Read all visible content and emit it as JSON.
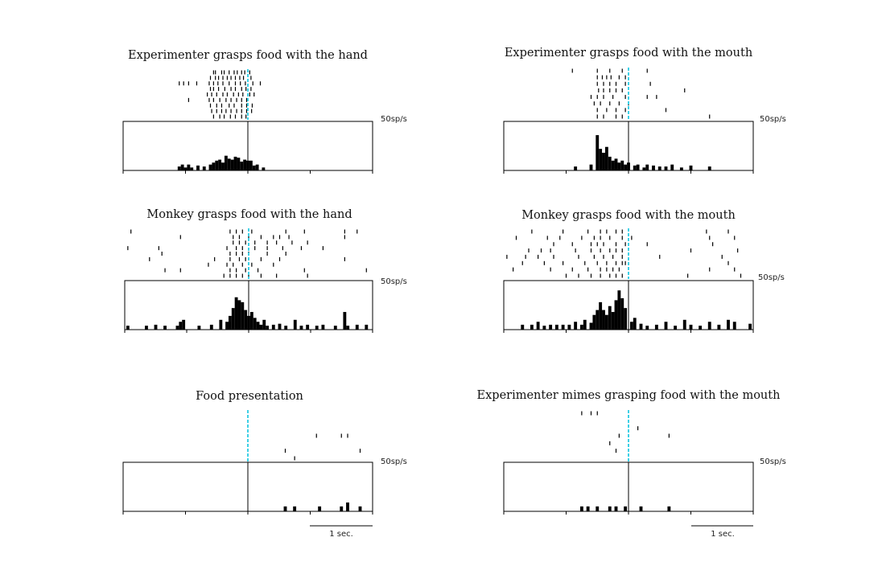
{
  "figure": {
    "scale_unit": "50sp/s",
    "timebar_label": "1 sec.",
    "colors": {
      "event_line": "#3fd0e6",
      "ink": "#000000"
    }
  },
  "chart_data": [
    {
      "type": "bar",
      "title": "Experimenter grasps food with the hand",
      "scale_label": "50sp/s",
      "x_range": [
        -2,
        2
      ],
      "x_unit": "s",
      "event_time": 0,
      "ylim": [
        0,
        50
      ],
      "raster": [
        [
          -0.55,
          -0.52,
          -0.42,
          -0.38,
          -0.3,
          -0.22,
          -0.17,
          -0.1,
          -0.05,
          0.03
        ],
        [
          -0.6,
          -0.52,
          -0.47,
          -0.4,
          -0.33,
          -0.27,
          -0.2,
          -0.13,
          -0.07,
          0.05
        ],
        [
          -1.1,
          -1.03,
          -0.95,
          -0.82,
          -0.62,
          -0.55,
          -0.48,
          -0.4,
          -0.3,
          -0.2,
          -0.12,
          -0.04,
          0.08,
          0.2
        ],
        [
          -0.6,
          -0.55,
          -0.47,
          -0.37,
          -0.27,
          -0.2,
          -0.1,
          -0.03,
          0.05
        ],
        [
          -0.65,
          -0.58,
          -0.5,
          -0.4,
          -0.33,
          -0.23,
          -0.15,
          -0.08,
          0.03,
          0.1
        ],
        [
          -0.95,
          -0.62,
          -0.55,
          -0.45,
          -0.35,
          -0.27,
          -0.18,
          -0.1,
          -0.02
        ],
        [
          -0.6,
          -0.5,
          -0.42,
          -0.3,
          -0.22,
          -0.1,
          -0.02,
          0.07
        ],
        [
          -0.58,
          -0.5,
          -0.42,
          -0.35,
          -0.27,
          -0.18,
          -0.1,
          -0.02,
          0.06
        ],
        [
          -0.55,
          -0.45,
          -0.38,
          -0.28,
          -0.2,
          -0.1,
          -0.03
        ]
      ],
      "psth": [
        [
          -1.1,
          4
        ],
        [
          -1.05,
          6
        ],
        [
          -1.0,
          3
        ],
        [
          -0.95,
          6
        ],
        [
          -0.9,
          3
        ],
        [
          -0.8,
          5
        ],
        [
          -0.7,
          4
        ],
        [
          -0.6,
          6
        ],
        [
          -0.55,
          8
        ],
        [
          -0.5,
          10
        ],
        [
          -0.45,
          11
        ],
        [
          -0.4,
          8
        ],
        [
          -0.35,
          15
        ],
        [
          -0.3,
          12
        ],
        [
          -0.25,
          11
        ],
        [
          -0.2,
          14
        ],
        [
          -0.15,
          13
        ],
        [
          -0.1,
          9
        ],
        [
          -0.05,
          11
        ],
        [
          0.0,
          10
        ],
        [
          0.05,
          10
        ],
        [
          0.1,
          5
        ],
        [
          0.15,
          6
        ],
        [
          0.25,
          3
        ]
      ]
    },
    {
      "type": "bar",
      "title": "Experimenter grasps food with the mouth",
      "scale_label": "50sp/s",
      "x_range": [
        -2,
        2
      ],
      "x_unit": "s",
      "event_time": 0,
      "ylim": [
        0,
        50
      ],
      "raster": [
        [
          -0.9,
          -0.5,
          -0.3,
          -0.1,
          0.3
        ],
        [
          -0.5,
          -0.42,
          -0.35,
          -0.28,
          -0.15,
          -0.05
        ],
        [
          -0.5,
          -0.4,
          -0.3,
          -0.2,
          -0.05,
          0.35
        ],
        [
          -0.48,
          -0.4,
          -0.3,
          -0.2,
          -0.1,
          0.9
        ],
        [
          -0.6,
          -0.5,
          -0.4,
          -0.25,
          -0.05,
          0.3,
          0.45
        ],
        [
          -0.55,
          -0.45,
          -0.3,
          -0.15,
          0.0
        ],
        [
          -0.5,
          -0.35,
          -0.2,
          -0.05,
          0.6
        ],
        [
          -0.5,
          -0.4,
          -0.2,
          -0.1,
          1.3
        ]
      ],
      "psth": [
        [
          -0.85,
          4
        ],
        [
          -0.6,
          6
        ],
        [
          -0.5,
          36
        ],
        [
          -0.45,
          22
        ],
        [
          -0.4,
          18
        ],
        [
          -0.35,
          24
        ],
        [
          -0.3,
          14
        ],
        [
          -0.25,
          10
        ],
        [
          -0.2,
          12
        ],
        [
          -0.15,
          8
        ],
        [
          -0.1,
          10
        ],
        [
          -0.05,
          6
        ],
        [
          0.0,
          8
        ],
        [
          0.1,
          5
        ],
        [
          0.15,
          6
        ],
        [
          0.25,
          3
        ],
        [
          0.3,
          6
        ],
        [
          0.4,
          5
        ],
        [
          0.5,
          4
        ],
        [
          0.6,
          4
        ],
        [
          0.7,
          6
        ],
        [
          0.85,
          3
        ],
        [
          1.0,
          5
        ],
        [
          1.3,
          4
        ]
      ]
    },
    {
      "type": "bar",
      "title": "Monkey grasps food with the hand",
      "scale_label": "50sp/s",
      "x_range": [
        -2,
        2
      ],
      "x_unit": "s",
      "event_time": 0,
      "ylim": [
        0,
        50
      ],
      "raster": [
        [
          -1.9,
          -0.3,
          -0.2,
          -0.1,
          0.05,
          0.6,
          0.9,
          1.55,
          1.75
        ],
        [
          -1.1,
          -0.25,
          -0.15,
          0.0,
          0.2,
          0.4,
          0.5,
          0.65,
          1.55
        ],
        [
          -0.25,
          -0.15,
          -0.05,
          0.1,
          0.3,
          0.45,
          0.7,
          0.95
        ],
        [
          -1.95,
          -1.45,
          -0.35,
          -0.2,
          -0.1,
          0.1,
          0.3,
          0.55,
          0.85,
          1.2
        ],
        [
          -1.4,
          -0.3,
          -0.2,
          -0.1,
          0.0,
          0.3,
          0.6
        ],
        [
          -1.6,
          -0.55,
          -0.3,
          -0.15,
          -0.05,
          0.2,
          0.5,
          1.55
        ],
        [
          -0.65,
          -0.35,
          -0.25,
          -0.1,
          0.05,
          0.4
        ],
        [
          -1.35,
          -1.1,
          -0.3,
          -0.2,
          -0.05,
          0.15,
          0.9,
          1.9
        ],
        [
          -0.4,
          -0.3,
          -0.2,
          -0.1,
          0.0,
          0.2,
          0.45,
          0.95
        ]
      ],
      "psth": [
        [
          -1.95,
          4
        ],
        [
          -1.65,
          4
        ],
        [
          -1.5,
          5
        ],
        [
          -1.35,
          4
        ],
        [
          -1.15,
          4
        ],
        [
          -1.1,
          8
        ],
        [
          -1.05,
          10
        ],
        [
          -0.8,
          4
        ],
        [
          -0.6,
          5
        ],
        [
          -0.45,
          10
        ],
        [
          -0.35,
          8
        ],
        [
          -0.3,
          14
        ],
        [
          -0.25,
          22
        ],
        [
          -0.2,
          33
        ],
        [
          -0.15,
          30
        ],
        [
          -0.1,
          28
        ],
        [
          -0.05,
          20
        ],
        [
          0.0,
          14
        ],
        [
          0.05,
          18
        ],
        [
          0.1,
          12
        ],
        [
          0.15,
          8
        ],
        [
          0.2,
          5
        ],
        [
          0.25,
          10
        ],
        [
          0.3,
          4
        ],
        [
          0.4,
          5
        ],
        [
          0.5,
          6
        ],
        [
          0.6,
          4
        ],
        [
          0.75,
          10
        ],
        [
          0.85,
          4
        ],
        [
          0.95,
          5
        ],
        [
          1.1,
          4
        ],
        [
          1.2,
          5
        ],
        [
          1.4,
          4
        ],
        [
          1.55,
          18
        ],
        [
          1.6,
          4
        ],
        [
          1.75,
          5
        ],
        [
          1.9,
          5
        ]
      ]
    },
    {
      "type": "bar",
      "title": "Monkey grasps food with the mouth",
      "scale_label": "50sp/s",
      "x_range": [
        -2,
        2
      ],
      "x_unit": "s",
      "event_time": 0,
      "ylim": [
        0,
        50
      ],
      "raster": [
        [
          -1.55,
          -1.05,
          -0.65,
          -0.45,
          -0.35,
          -0.2,
          -0.1,
          1.25,
          1.6
        ],
        [
          -1.8,
          -1.3,
          -1.1,
          -0.75,
          -0.55,
          -0.45,
          -0.3,
          -0.1,
          0.05,
          1.3,
          1.7
        ],
        [
          -1.2,
          -0.9,
          -0.6,
          -0.5,
          -0.4,
          -0.2,
          -0.05,
          0.3,
          1.35
        ],
        [
          -1.6,
          -1.4,
          -1.25,
          -0.85,
          -0.6,
          -0.45,
          -0.3,
          -0.2,
          -0.1,
          1.0,
          1.75
        ],
        [
          -1.95,
          -1.65,
          -1.45,
          -1.2,
          -0.8,
          -0.55,
          -0.4,
          -0.25,
          -0.1,
          0.5,
          1.5
        ],
        [
          -1.7,
          -1.35,
          -1.05,
          -0.7,
          -0.5,
          -0.35,
          -0.2,
          -0.1,
          -0.05,
          1.6
        ],
        [
          -1.85,
          -1.25,
          -0.9,
          -0.65,
          -0.45,
          -0.35,
          -0.25,
          -0.15,
          1.3,
          1.7
        ],
        [
          -1.0,
          -0.8,
          -0.6,
          -0.45,
          -0.3,
          -0.2,
          -0.1,
          0.95,
          1.8
        ]
      ],
      "psth": [
        [
          -1.7,
          5
        ],
        [
          -1.55,
          5
        ],
        [
          -1.45,
          8
        ],
        [
          -1.35,
          4
        ],
        [
          -1.25,
          5
        ],
        [
          -1.15,
          5
        ],
        [
          -1.05,
          5
        ],
        [
          -0.95,
          5
        ],
        [
          -0.85,
          8
        ],
        [
          -0.75,
          5
        ],
        [
          -0.7,
          10
        ],
        [
          -0.6,
          7
        ],
        [
          -0.55,
          15
        ],
        [
          -0.5,
          20
        ],
        [
          -0.45,
          28
        ],
        [
          -0.4,
          20
        ],
        [
          -0.35,
          15
        ],
        [
          -0.3,
          24
        ],
        [
          -0.25,
          18
        ],
        [
          -0.2,
          30
        ],
        [
          -0.15,
          40
        ],
        [
          -0.1,
          32
        ],
        [
          -0.05,
          22
        ],
        [
          0.05,
          8
        ],
        [
          0.1,
          12
        ],
        [
          0.2,
          6
        ],
        [
          0.3,
          4
        ],
        [
          0.45,
          5
        ],
        [
          0.6,
          8
        ],
        [
          0.75,
          4
        ],
        [
          0.9,
          10
        ],
        [
          1.0,
          5
        ],
        [
          1.15,
          4
        ],
        [
          1.3,
          8
        ],
        [
          1.45,
          5
        ],
        [
          1.6,
          10
        ],
        [
          1.7,
          8
        ],
        [
          1.95,
          6
        ]
      ]
    },
    {
      "type": "bar",
      "title": "Food presentation",
      "scale_label": "50sp/s",
      "x_range": [
        -2,
        2
      ],
      "x_unit": "s",
      "event_time": 0,
      "ylim": [
        0,
        50
      ],
      "timebar_label": "1 sec.",
      "raster": [
        [],
        [],
        [],
        [
          1.1,
          1.5,
          1.6
        ],
        [],
        [
          0.6,
          1.8
        ],
        [
          0.75
        ]
      ],
      "psth": [
        [
          0.6,
          5
        ],
        [
          0.75,
          5
        ],
        [
          1.15,
          5
        ],
        [
          1.5,
          5
        ],
        [
          1.6,
          9
        ],
        [
          1.8,
          5
        ]
      ]
    },
    {
      "type": "bar",
      "title": "Experimenter mimes grasping food with the mouth",
      "scale_label": "50sp/s",
      "x_range": [
        -2,
        2
      ],
      "x_unit": "s",
      "event_time": 0,
      "ylim": [
        0,
        50
      ],
      "timebar_label": "1 sec.",
      "raster": [
        [
          -0.75,
          -0.6,
          -0.5
        ],
        [],
        [
          0.15
        ],
        [
          -0.15,
          0.65
        ],
        [
          -0.3
        ],
        [
          -0.2
        ],
        []
      ],
      "psth": [
        [
          -0.75,
          5
        ],
        [
          -0.65,
          5
        ],
        [
          -0.5,
          5
        ],
        [
          -0.3,
          5
        ],
        [
          -0.2,
          5
        ],
        [
          -0.05,
          5
        ],
        [
          0.2,
          5
        ],
        [
          0.65,
          5
        ]
      ]
    }
  ]
}
